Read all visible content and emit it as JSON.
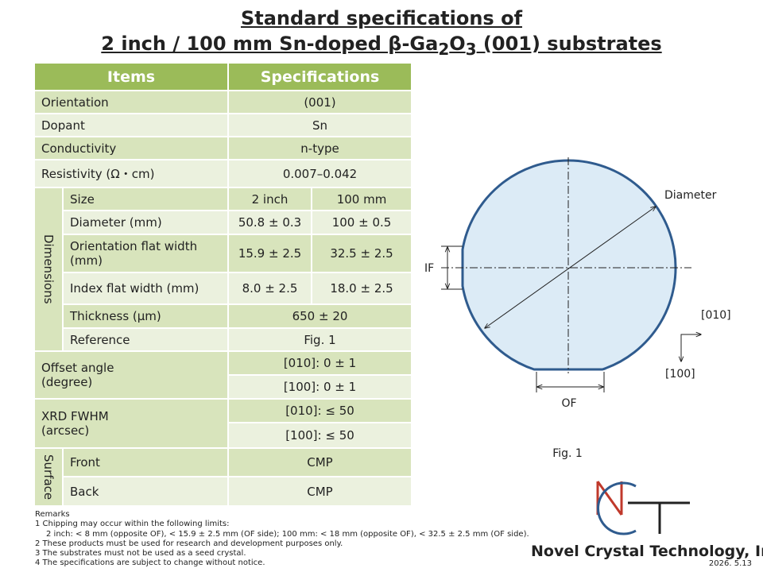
{
  "title": {
    "line1": "Standard specifications of",
    "line2": [
      "2 inch / 100 mm Sn-doped β-Ga",
      "2",
      "O",
      "3",
      " (001) substrates"
    ]
  },
  "table": {
    "header": [
      "Items",
      "Specifications"
    ],
    "rows": [
      [
        "Orientation",
        "(001)"
      ],
      [
        "Dopant",
        "Sn"
      ],
      [
        "Conductivity",
        "n-type"
      ],
      [
        "Resistivity (Ω・cm)",
        "0.007–0.042"
      ]
    ],
    "dimensions": {
      "group": "Dimensions",
      "rows": [
        [
          "Size",
          "2 inch",
          "100 mm"
        ],
        [
          "Diameter (mm)",
          "50.8 ± 0.3",
          "100 ± 0.5"
        ],
        [
          "Orientation flat width (mm)",
          "15.9 ± 2.5",
          "32.5 ± 2.5"
        ],
        [
          "Index flat width (mm)",
          "8.0 ± 2.5",
          "18.0 ± 2.5"
        ],
        [
          "Thickness (µm)",
          "650 ± 20"
        ],
        [
          "Reference",
          "Fig. 1"
        ]
      ]
    },
    "offset_angle": {
      "label": "Offset angle\n(degree)",
      "values": [
        "[010]: 0 ± 1",
        "[100]: 0 ± 1"
      ]
    },
    "xrd_fwhm": {
      "label": "XRD FWHM\n(arcsec)",
      "values": [
        "[010]: ≤ 50",
        "[100]: ≤ 50"
      ]
    },
    "surface": {
      "group": "Surface",
      "rows": [
        [
          "Front",
          "CMP"
        ],
        [
          "Back",
          "CMP"
        ]
      ]
    }
  },
  "figure": {
    "diameter": "Diameter",
    "if": "IF",
    "of": "OF",
    "dir_010": "[010]",
    "dir_100": "[100]",
    "caption": "Fig. 1"
  },
  "remarks": {
    "title": "Remarks",
    "items": [
      "1 Chipping may occur within the following limits:",
      "2 inch: < 8 mm (opposite OF), < 15.9 ± 2.5 mm (OF side); 100 mm: < 18 mm (opposite OF), < 32.5 ± 2.5 mm (OF side).",
      "2 These products must be used for research and development purposes only.",
      "3 The substrates must not be used as a seed crystal.",
      "4 The specifications are subject to change without notice."
    ]
  },
  "footer": {
    "company": "Novel Crystal Technology, Inc.",
    "date": "2026. 5.13"
  }
}
